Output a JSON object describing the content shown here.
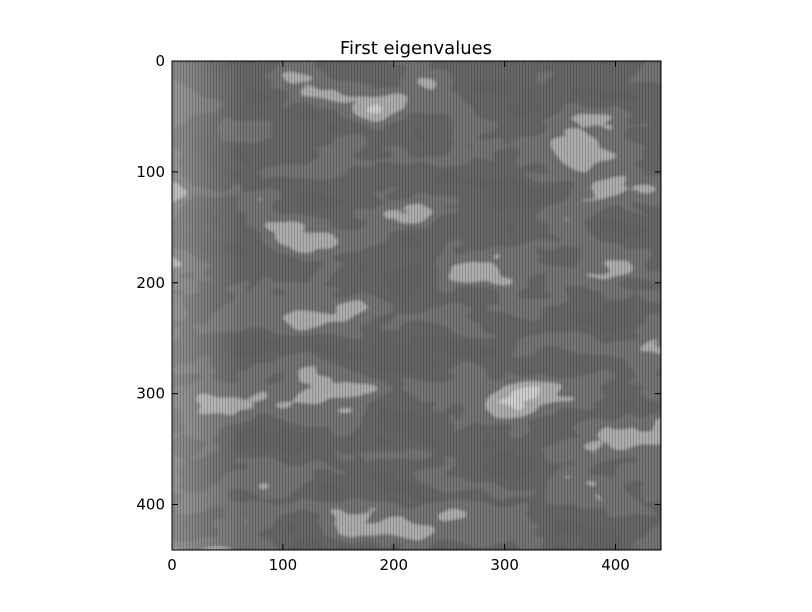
{
  "chart_data": {
    "type": "heatmap",
    "title": "First eigenvalues",
    "xlabel": "",
    "ylabel": "",
    "colormap": "gray",
    "grid": false,
    "xlim": [
      0,
      441
    ],
    "ylim": [
      441,
      0
    ],
    "x_ticks": [
      0,
      100,
      200,
      300,
      400
    ],
    "y_ticks": [
      0,
      100,
      200,
      300,
      400
    ],
    "x_tick_labels": [
      "0",
      "100",
      "200",
      "300",
      "400"
    ],
    "y_tick_labels": [
      "0",
      "100",
      "200",
      "300",
      "400"
    ],
    "background_color": "#2b2b2b",
    "bright_color": "#e6e6e6",
    "dark_color": "#202020"
  }
}
